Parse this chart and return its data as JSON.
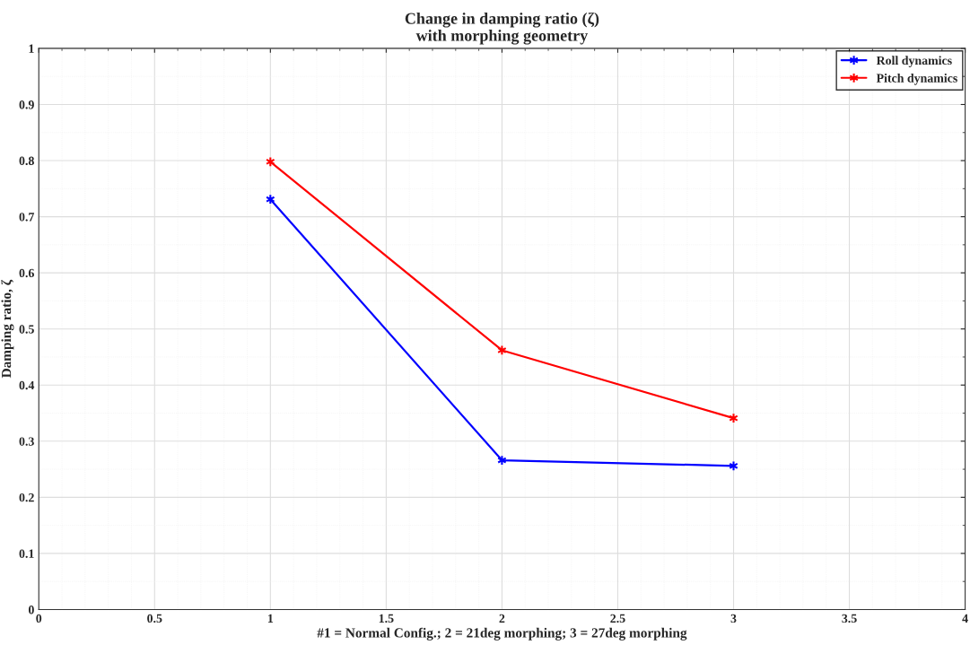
{
  "chart_data": {
    "type": "line",
    "title": "Change in damping ratio (ζ)\nwith morphing geometry",
    "xlabel": "#1 = Normal Config.; 2 = 21deg morphing; 3 = 27deg morphing",
    "ylabel": "Damping ratio, ζ",
    "x": [
      1,
      2,
      3
    ],
    "series": [
      {
        "name": "Roll dynamics",
        "color": "#0000ff",
        "values": [
          0.731,
          0.266,
          0.256
        ]
      },
      {
        "name": "Pitch dynamics",
        "color": "#ff0000",
        "values": [
          0.798,
          0.462,
          0.341
        ]
      }
    ],
    "xlim": [
      0,
      4
    ],
    "xticks": [
      0,
      0.5,
      1,
      1.5,
      2,
      2.5,
      3,
      3.5,
      4
    ],
    "ylim": [
      0,
      1
    ],
    "yticks": [
      0,
      0.1,
      0.2,
      0.3,
      0.4,
      0.5,
      0.6,
      0.7,
      0.8,
      0.9,
      1
    ],
    "grid": true,
    "legend": "top right",
    "marker": "cross",
    "line_style": "solid"
  }
}
